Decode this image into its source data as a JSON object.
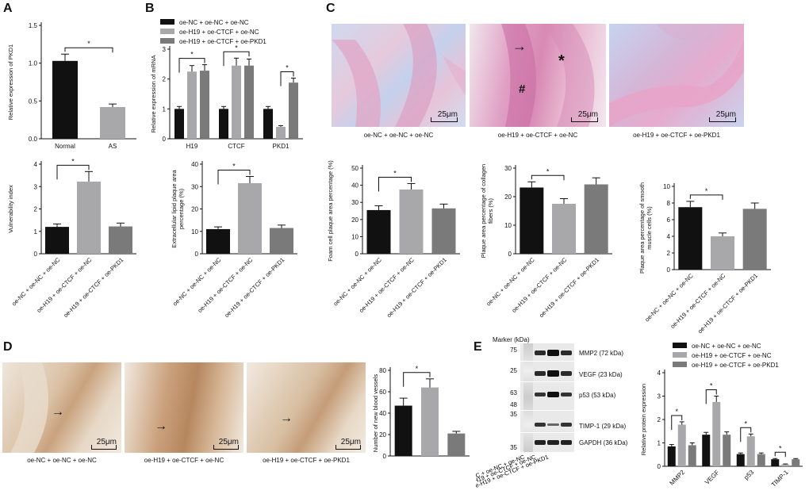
{
  "figure": {
    "panels": [
      "A",
      "B",
      "C",
      "D",
      "E"
    ],
    "groups": [
      "oe-NC + oe-NC + oe-NC",
      "oe-H19 + oe-CTCF + oe-NC",
      "oe-H19 + oe-CTCF + oe-PKD1"
    ],
    "colors": {
      "black": "#111111",
      "lightgray": "#a8a8ab",
      "darkgray": "#7a7a7a"
    },
    "scale_label": "25μm",
    "c_marks": {
      "arrow": "→",
      "star": "*",
      "hash": "#"
    },
    "marker_label": "Marker (kDa)",
    "blot_markers": [
      "75",
      "25",
      "63",
      "48",
      "35",
      "35"
    ],
    "blot_bands": [
      "MMP2 (72 kDa)",
      "VEGF (23 kDa)",
      "p53 (53 kDa)",
      "TIMP-1 (29 kDa)",
      "GAPDH (36 kDa)"
    ]
  },
  "chart_data": [
    {
      "id": "A-top",
      "type": "bar",
      "categories": [
        "Normal",
        "AS"
      ],
      "values": [
        1.03,
        0.42
      ],
      "errors": [
        0.09,
        0.04
      ],
      "ylabel": "Relative expression of PKD1",
      "ylim": [
        0,
        1.5
      ],
      "yticks": [
        "0.0",
        "0.5",
        "1.0",
        "1.5"
      ],
      "significance": [
        "*"
      ]
    },
    {
      "id": "A-bottom",
      "type": "bar",
      "categories": [
        "oe-NC + oe-NC + oe-NC",
        "oe-H19 + oe-CTCF + oe-NC",
        "oe-H19 + oe-CTCF + oe-PKD1"
      ],
      "values": [
        1.2,
        3.22,
        1.22
      ],
      "errors": [
        0.13,
        0.45,
        0.15
      ],
      "ylabel": "Vulnerability index",
      "ylim": [
        0,
        4
      ],
      "yticks": [
        "0",
        "1",
        "2",
        "3",
        "4"
      ],
      "significance": [
        "*"
      ]
    },
    {
      "id": "B-top",
      "type": "bar",
      "categories": [
        "H19",
        "CTCF",
        "PKD1"
      ],
      "series": [
        {
          "name": "oe-NC + oe-NC + oe-NC",
          "values": [
            1.0,
            1.0,
            1.0
          ],
          "errors": [
            0.08,
            0.08,
            0.08
          ]
        },
        {
          "name": "oe-H19 + oe-CTCF + oe-NC",
          "values": [
            2.25,
            2.45,
            0.4
          ],
          "errors": [
            0.2,
            0.25,
            0.04
          ]
        },
        {
          "name": "oe-H19 + oe-CTCF + oe-PKD1",
          "values": [
            2.28,
            2.45,
            1.88
          ],
          "errors": [
            0.2,
            0.22,
            0.15
          ]
        }
      ],
      "ylabel": "Relative expression of mRNA",
      "ylim": [
        0,
        3
      ],
      "yticks": [
        "0",
        "1",
        "2",
        "3"
      ],
      "significance": [
        "*",
        "*",
        "*"
      ]
    },
    {
      "id": "B-bottom",
      "type": "bar",
      "categories": [
        "oe-NC + oe-NC + oe-NC",
        "oe-H19 + oe-CTCF + oe-NC",
        "oe-H19 + oe-CTCF + oe-PKD1"
      ],
      "values": [
        11,
        31.5,
        11.5
      ],
      "errors": [
        1.0,
        3.0,
        1.3
      ],
      "ylabel": "Extracellular lipid plaque area percentage (%)",
      "ylim": [
        0,
        40
      ],
      "yticks": [
        "0",
        "10",
        "20",
        "30",
        "40"
      ],
      "significance": [
        "*"
      ]
    },
    {
      "id": "C-1",
      "type": "bar",
      "categories": [
        "oe-NC + oe-NC + oe-NC",
        "oe-H19 + oe-CTCF + oe-NC",
        "oe-H19 + oe-CTCF + oe-PKD1"
      ],
      "values": [
        25.5,
        37.5,
        26.5
      ],
      "errors": [
        2.5,
        3.5,
        2.5
      ],
      "ylabel": "Foam cell plaque area percentage (%)",
      "ylim": [
        0,
        50
      ],
      "yticks": [
        "0",
        "10",
        "20",
        "30",
        "40",
        "50"
      ],
      "significance": [
        "*"
      ]
    },
    {
      "id": "C-2",
      "type": "bar",
      "categories": [
        "oe-NC + oe-NC + oe-NC",
        "oe-H19 + oe-CTCF + oe-NC",
        "oe-H19 + oe-CTCF + oe-PKD1"
      ],
      "values": [
        23.2,
        17.5,
        24.3
      ],
      "errors": [
        2.0,
        1.8,
        2.3
      ],
      "ylabel": "Plaque area percentage of collagen fibers (%)",
      "ylim": [
        0,
        30
      ],
      "yticks": [
        "0",
        "10",
        "20",
        "30"
      ],
      "significance": [
        "*"
      ]
    },
    {
      "id": "C-3",
      "type": "bar",
      "categories": [
        "oe-NC + oe-NC + oe-NC",
        "oe-H19 + oe-CTCF + oe-NC",
        "oe-H19 + oe-CTCF + oe-PKD1"
      ],
      "values": [
        7.5,
        4.0,
        7.3
      ],
      "errors": [
        0.7,
        0.4,
        0.7
      ],
      "ylabel": "Plaque area percentage of smooth muscle cells (%)",
      "ylim": [
        0,
        10
      ],
      "yticks": [
        "0",
        "2",
        "4",
        "6",
        "8",
        "10"
      ],
      "significance": [
        "*"
      ]
    },
    {
      "id": "D",
      "type": "bar",
      "categories": [
        "oe-NC + oe-NC + oe-NC",
        "oe-H19 + oe-CTCF + oe-NC",
        "oe-H19 + oe-CTCF + oe-PKD1"
      ],
      "values": [
        47,
        64,
        21
      ],
      "errors": [
        7,
        8,
        2
      ],
      "ylabel": "Number of new blood vessels",
      "ylim": [
        0,
        80
      ],
      "yticks": [
        "0",
        "20",
        "40",
        "60",
        "80"
      ],
      "significance": [
        "*"
      ]
    },
    {
      "id": "E",
      "type": "bar",
      "categories": [
        "MMP2",
        "VEGF",
        "p53",
        "TIMP-1"
      ],
      "series": [
        {
          "name": "oe-NC + oe-NC + oe-NC",
          "values": [
            0.85,
            1.35,
            0.52,
            0.3
          ],
          "errors": [
            0.08,
            0.1,
            0.05,
            0.03
          ]
        },
        {
          "name": "oe-H19 + oe-CTCF + oe-NC",
          "values": [
            1.78,
            2.75,
            1.28,
            0.08
          ],
          "errors": [
            0.12,
            0.25,
            0.1,
            0.02
          ]
        },
        {
          "name": "oe-H19 + oe-CTCF + oe-PKD1",
          "values": [
            0.9,
            1.35,
            0.52,
            0.3
          ],
          "errors": [
            0.1,
            0.12,
            0.05,
            0.03
          ]
        }
      ],
      "ylabel": "Relative protein expression",
      "ylim": [
        0,
        4
      ],
      "yticks": [
        "0",
        "1",
        "2",
        "3",
        "4"
      ],
      "significance": [
        "*",
        "*",
        "*",
        "*"
      ]
    }
  ]
}
